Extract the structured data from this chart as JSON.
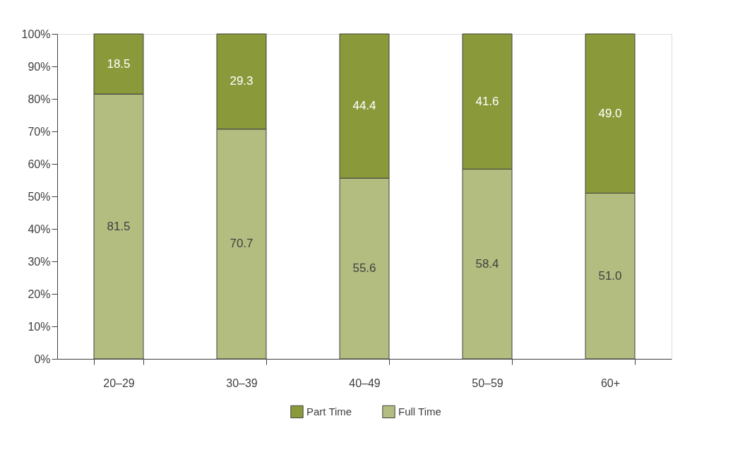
{
  "chart_data": {
    "type": "bar",
    "stacked": true,
    "legend": "bottom",
    "grid": false,
    "categories": [
      "20–29",
      "30–39",
      "40–49",
      "50–59",
      "60+"
    ],
    "series": [
      {
        "name": "Full Time",
        "color": "#b3bd80",
        "values": [
          81.5,
          70.7,
          55.6,
          58.4,
          51.0
        ],
        "value_labels": [
          "81.5",
          "70.7",
          "55.6",
          "58.4",
          "51.0"
        ]
      },
      {
        "name": "Part Time",
        "color": "#8a9a3b",
        "values": [
          18.5,
          29.3,
          44.4,
          41.6,
          49.0
        ],
        "value_labels": [
          "18.5",
          "29.3",
          "44.4",
          "41.6",
          "49.0"
        ]
      }
    ],
    "ylim": [
      0,
      100
    ],
    "yticks": [
      {
        "value": 0,
        "label": "0%"
      },
      {
        "value": 10,
        "label": "10%"
      },
      {
        "value": 20,
        "label": "20%"
      },
      {
        "value": 30,
        "label": "30%"
      },
      {
        "value": 40,
        "label": "40%"
      },
      {
        "value": 50,
        "label": "50%"
      },
      {
        "value": 60,
        "label": "60%"
      },
      {
        "value": 70,
        "label": "70%"
      },
      {
        "value": 80,
        "label": "80%"
      },
      {
        "value": 90,
        "label": "90%"
      },
      {
        "value": 100,
        "label": "100%"
      }
    ]
  }
}
